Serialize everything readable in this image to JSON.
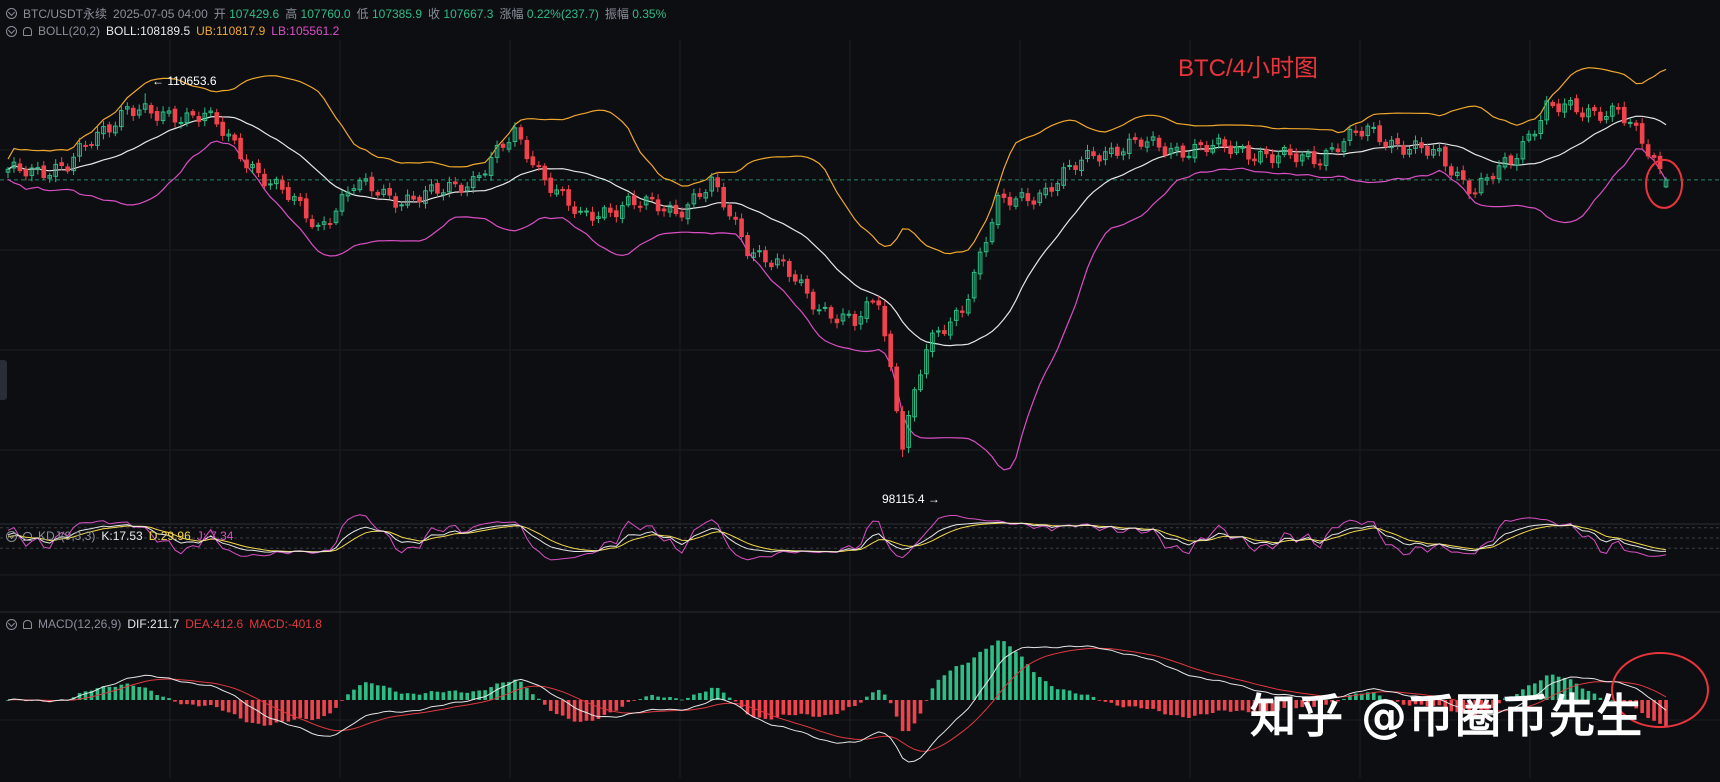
{
  "header": {
    "symbol": "BTC/USDT永续",
    "datetime": "2025-07-05 04:00",
    "open_label": "开",
    "open": "107429.6",
    "high_label": "高",
    "high": "107760.0",
    "low_label": "低",
    "low": "107385.9",
    "close_label": "收",
    "close": "107667.3",
    "change_label": "涨幅",
    "change": "0.22%(237.7)",
    "amplitude_label": "振幅",
    "amplitude": "0.35%"
  },
  "boll": {
    "name": "BOLL(20,2)",
    "mid": "BOLL:108189.5",
    "ub": "UB:110817.9",
    "lb": "LB:105561.2"
  },
  "kdj": {
    "name": "KDJ(9,3,3)",
    "k": "K:17.53",
    "d": "D:29.96",
    "j": "J:-7.34"
  },
  "macd": {
    "name": "MACD(12,26,9)",
    "dif": "DIF:211.7",
    "dea": "DEA:412.6",
    "macd": "MACD:-401.8"
  },
  "annotation": "BTC/4小时图",
  "watermark": "知乎 @币圈币先生",
  "labels": {
    "high": "← 110653.6",
    "low": "98115.4 →"
  },
  "colors": {
    "bg": "#0d0e12",
    "up": "#2ebd85",
    "down": "#f0434d",
    "mid": "#e6e6e6",
    "ub": "#f0a72d",
    "lb": "#d94fc4",
    "k": "#e6e6e6",
    "d": "#f2d64b",
    "j": "#d94fc4",
    "dif": "#e6e6e6",
    "dea": "#e0393e",
    "circle": "#e8353b"
  },
  "chart_data": {
    "type": "candlestick",
    "interval": "4h",
    "price_range": [
      97500,
      111800
    ],
    "price_anchors": [
      {
        "i": 0,
        "c": 107900
      },
      {
        "i": 10,
        "c": 108150
      },
      {
        "i": 20,
        "c": 110200
      },
      {
        "i": 25,
        "c": 109800
      },
      {
        "i": 33,
        "c": 110000
      },
      {
        "i": 40,
        "c": 108300
      },
      {
        "i": 46,
        "c": 107300
      },
      {
        "i": 52,
        "c": 106000
      },
      {
        "i": 58,
        "c": 107500
      },
      {
        "i": 66,
        "c": 107000
      },
      {
        "i": 72,
        "c": 107200
      },
      {
        "i": 78,
        "c": 107700
      },
      {
        "i": 85,
        "c": 109200
      },
      {
        "i": 90,
        "c": 107800
      },
      {
        "i": 96,
        "c": 106300
      },
      {
        "i": 104,
        "c": 106900
      },
      {
        "i": 112,
        "c": 106600
      },
      {
        "i": 118,
        "c": 107500
      },
      {
        "i": 124,
        "c": 105400
      },
      {
        "i": 130,
        "c": 104600
      },
      {
        "i": 136,
        "c": 103300
      },
      {
        "i": 142,
        "c": 102700
      },
      {
        "i": 146,
        "c": 103600
      },
      {
        "i": 150,
        "c": 98700
      },
      {
        "i": 154,
        "c": 101800
      },
      {
        "i": 160,
        "c": 103300
      },
      {
        "i": 166,
        "c": 106800
      },
      {
        "i": 174,
        "c": 107300
      },
      {
        "i": 182,
        "c": 108600
      },
      {
        "i": 190,
        "c": 108900
      },
      {
        "i": 198,
        "c": 108700
      },
      {
        "i": 206,
        "c": 108800
      },
      {
        "i": 212,
        "c": 108400
      },
      {
        "i": 220,
        "c": 108500
      },
      {
        "i": 228,
        "c": 109400
      },
      {
        "i": 234,
        "c": 108800
      },
      {
        "i": 240,
        "c": 108500
      },
      {
        "i": 246,
        "c": 107300
      },
      {
        "i": 252,
        "c": 108300
      },
      {
        "i": 258,
        "c": 110200
      },
      {
        "i": 264,
        "c": 110000
      },
      {
        "i": 270,
        "c": 110100
      },
      {
        "i": 275,
        "c": 108600
      },
      {
        "i": 278,
        "c": 107667
      }
    ],
    "extremes": {
      "high": 110653.6,
      "low": 98115.4
    },
    "last": {
      "open": 107429.6,
      "high": 107760.0,
      "low": 107385.9,
      "close": 107667.3
    },
    "indicators": [
      "BOLL(20,2)",
      "KDJ(9,3,3)",
      "MACD(12,26,9)"
    ]
  }
}
